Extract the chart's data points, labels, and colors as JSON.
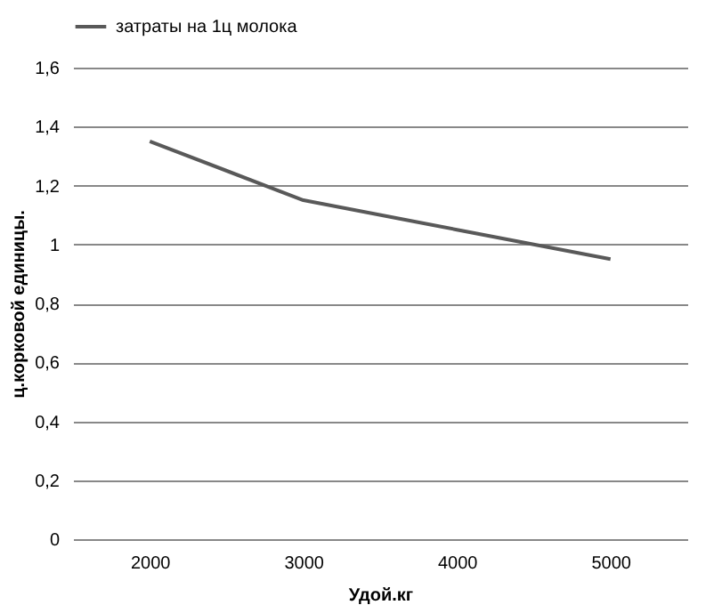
{
  "chart_data": {
    "type": "line",
    "xlabel": "Удой.кг",
    "ylabel": "ц.корковой единицы.",
    "categories": [
      "2000",
      "3000",
      "4000",
      "5000"
    ],
    "series": [
      {
        "name": "затраты на 1ц молока",
        "color": "#595959",
        "values": [
          1.35,
          1.15,
          1.05,
          0.95
        ]
      }
    ],
    "ylim": [
      0,
      1.6
    ],
    "yticks": [
      0,
      {
        "value": 0.2,
        "label": "0,2"
      },
      {
        "value": 0.4,
        "label": "0,4"
      },
      {
        "value": 0.6,
        "label": "0,6"
      },
      {
        "value": 0.8,
        "label": "0,8"
      },
      1,
      {
        "value": 1.2,
        "label": "1,2"
      },
      {
        "value": 1.4,
        "label": "1,4"
      },
      {
        "value": 1.6,
        "label": "1,6"
      }
    ],
    "grid": "y",
    "legend": "top",
    "marker": "none",
    "line_style": "solid"
  }
}
